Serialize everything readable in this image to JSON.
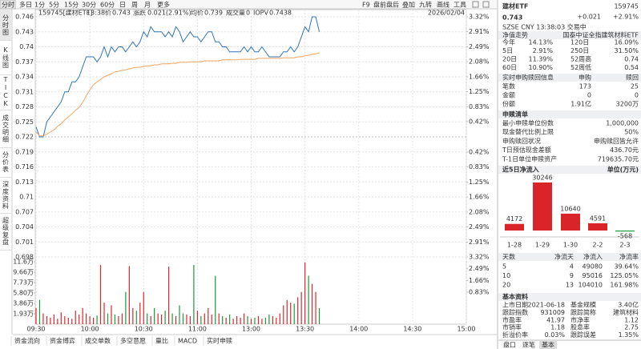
{
  "toolbar": {
    "left": [
      "分时",
      "多日",
      "1分",
      "5分",
      "15分",
      "30分",
      "60分",
      "日",
      "周",
      "月",
      "更多"
    ],
    "right": [
      "F9",
      "盘前盘后",
      "叠加",
      "九转",
      "画线",
      "工具"
    ]
  },
  "side_tabs": [
    "分时图",
    "K线图",
    "TICK",
    "成交明细",
    "分价表",
    "深度资料",
    "超级复盘"
  ],
  "info": {
    "code": "159745[建材ETF]",
    "time": "13:38",
    "price_label": "价",
    "price": "0.743",
    "change_label": "涨跌",
    "change": "0.021(2.91%)",
    "avg_label": "均价",
    "avg": "0.739",
    "volume_label": "成交量",
    "volume": "0",
    "iopv_label": "IOPV",
    "iopv": "0.7438",
    "date": "2026/02/04"
  },
  "bottom_tabs": [
    "资金流向",
    "资金博弈",
    "成交单数",
    "多空意愿",
    "量比",
    "MACD",
    "实时申赎"
  ],
  "chart_data": [
    {
      "type": "line",
      "xlim": [
        0,
        240
      ],
      "xticks": [
        {
          "value": 0,
          "label": "09:30"
        },
        {
          "value": 30,
          "label": "10:00"
        },
        {
          "value": 60,
          "label": "10:30"
        },
        {
          "value": 90,
          "label": "11:00"
        },
        {
          "value": 120,
          "label": "13:00"
        },
        {
          "value": 150,
          "label": "13:30"
        },
        {
          "value": 180,
          "label": "14:00"
        },
        {
          "value": 210,
          "label": "14:30"
        },
        {
          "value": 240,
          "label": "15:00"
        }
      ],
      "ylim": [
        0.698,
        0.746
      ],
      "yticks": [
        0.746,
        0.743,
        0.74,
        0.737,
        0.734,
        0.731,
        0.728,
        0.725,
        0.722,
        0.719,
        0.716,
        0.713,
        0.71,
        0.707,
        0.704,
        0.701,
        0.698
      ],
      "y2lim": [
        -3.32,
        3.32
      ],
      "y2ticks": [
        {
          "value": 3.32,
          "label": "3.32%"
        },
        {
          "value": 2.91,
          "label": "2.91%"
        },
        {
          "value": 2.49,
          "label": "2.49%"
        },
        {
          "value": 2.08,
          "label": "2.08%"
        },
        {
          "value": 1.66,
          "label": "1.66%"
        },
        {
          "value": 1.25,
          "label": "1.25%"
        },
        {
          "value": 0.83,
          "label": "0.83%"
        },
        {
          "value": 0.42,
          "label": "0.42%"
        },
        {
          "value": -0.42,
          "label": "0.42%"
        },
        {
          "value": -0.83,
          "label": "0.83%"
        },
        {
          "value": -1.25,
          "label": "1.25%"
        },
        {
          "value": -1.66,
          "label": "1.66%"
        },
        {
          "value": -2.08,
          "label": "2.08%"
        },
        {
          "value": -2.49,
          "label": "2.49%"
        },
        {
          "value": -2.91,
          "label": "2.91%"
        },
        {
          "value": -3.32,
          "label": "3.32%"
        }
      ],
      "grid": true,
      "x": [
        0,
        2,
        4,
        6,
        8,
        10,
        12,
        14,
        16,
        18,
        20,
        22,
        24,
        26,
        28,
        30,
        32,
        34,
        36,
        38,
        40,
        42,
        44,
        46,
        48,
        50,
        52,
        54,
        56,
        58,
        60,
        62,
        64,
        66,
        68,
        70,
        72,
        74,
        76,
        78,
        80,
        82,
        84,
        86,
        88,
        90,
        92,
        94,
        96,
        98,
        100,
        102,
        104,
        106,
        108,
        110,
        112,
        114,
        116,
        118,
        120,
        122,
        124,
        126,
        128,
        130,
        132,
        134,
        136,
        138,
        140,
        142,
        144,
        146,
        148,
        150,
        152,
        154,
        156,
        158
      ],
      "series": [
        {
          "color": "#2f74b5",
          "values": [
            0.724,
            0.722,
            0.722,
            0.725,
            0.726,
            0.727,
            0.728,
            0.729,
            0.731,
            0.731,
            0.733,
            0.733,
            0.734,
            0.736,
            0.738,
            0.738,
            0.738,
            0.737,
            0.738,
            0.74,
            0.738,
            0.74,
            0.739,
            0.74,
            0.74,
            0.739,
            0.74,
            0.741,
            0.74,
            0.741,
            0.743,
            0.742,
            0.744,
            0.743,
            0.743,
            0.743,
            0.742,
            0.743,
            0.742,
            0.744,
            0.743,
            0.741,
            0.742,
            0.743,
            0.742,
            0.742,
            0.741,
            0.742,
            0.743,
            0.743,
            0.741,
            0.741,
            0.74,
            0.74,
            0.739,
            0.739,
            0.739,
            0.739,
            0.74,
            0.739,
            0.74,
            0.739,
            0.739,
            0.74,
            0.739,
            0.738,
            0.738,
            0.738,
            0.738,
            0.739,
            0.739,
            0.74,
            0.739,
            0.74,
            0.742,
            0.744,
            0.743,
            0.746,
            0.746,
            0.743
          ]
        },
        {
          "color": "#f4a460",
          "values": [
            0.723,
            0.7222,
            0.7222,
            0.7225,
            0.723,
            0.7234,
            0.7241,
            0.7246,
            0.7254,
            0.726,
            0.7266,
            0.7273,
            0.7279,
            0.7289,
            0.7302,
            0.7314,
            0.7324,
            0.733,
            0.7335,
            0.734,
            0.7343,
            0.7346,
            0.735,
            0.7351,
            0.7353,
            0.7354,
            0.7356,
            0.7358,
            0.7359,
            0.7359,
            0.7361,
            0.7362,
            0.7362,
            0.7364,
            0.7364,
            0.7366,
            0.7366,
            0.7366,
            0.7367,
            0.7367,
            0.7369,
            0.7369,
            0.7369,
            0.737,
            0.737,
            0.737,
            0.737,
            0.7372,
            0.7372,
            0.7372,
            0.7372,
            0.7372,
            0.7374,
            0.7374,
            0.7374,
            0.7374,
            0.7374,
            0.7375,
            0.7375,
            0.7375,
            0.7375,
            0.7375,
            0.7377,
            0.7377,
            0.7377,
            0.7377,
            0.7377,
            0.7377,
            0.7377,
            0.7378,
            0.7378,
            0.7378,
            0.7378,
            0.738,
            0.738,
            0.7382,
            0.7383,
            0.7385,
            0.7386,
            0.7388
          ]
        }
      ]
    },
    {
      "type": "bar",
      "ylim": [
        0,
        125000
      ],
      "yticks": [
        {
          "value": 116000,
          "label": "11.6万"
        },
        {
          "value": 96600,
          "label": "9.66万"
        },
        {
          "value": 77300,
          "label": "7.73万"
        },
        {
          "value": 58000,
          "label": "5.80万"
        },
        {
          "value": 38600,
          "label": "3.86万"
        },
        {
          "value": 19300,
          "label": "1.93万"
        }
      ],
      "y2lim": [
        -1.43,
        3.32
      ],
      "y2ticks": [
        {
          "value": 2.49,
          "label": "2.49%"
        },
        {
          "value": 1.66,
          "label": "1.66%"
        },
        {
          "value": 0.83,
          "label": "0.83%"
        }
      ],
      "up_color": "#e0262b",
      "down_color": "#1a9a3a",
      "x": [
        0,
        2,
        4,
        6,
        8,
        10,
        12,
        14,
        16,
        18,
        20,
        22,
        24,
        26,
        28,
        30,
        32,
        34,
        36,
        38,
        40,
        42,
        44,
        46,
        48,
        50,
        52,
        54,
        56,
        58,
        60,
        62,
        64,
        66,
        68,
        70,
        72,
        74,
        76,
        78,
        80,
        82,
        84,
        86,
        88,
        90,
        92,
        94,
        96,
        98,
        100,
        102,
        104,
        106,
        108,
        110,
        112,
        114,
        116,
        118,
        120,
        122,
        124,
        126,
        128,
        130,
        132,
        134,
        136,
        138,
        140,
        142,
        144,
        146,
        148,
        150,
        152,
        154,
        156,
        158
      ],
      "values": [
        30000,
        45000,
        20000,
        15000,
        12000,
        18000,
        10000,
        22000,
        15000,
        12000,
        10000,
        25000,
        18000,
        30000,
        20000,
        15000,
        12000,
        16000,
        110000,
        40000,
        20000,
        35000,
        18000,
        15000,
        20000,
        60000,
        108000,
        30000,
        25000,
        40000,
        60000,
        20000,
        15000,
        30000,
        20000,
        18000,
        25000,
        107000,
        20000,
        15000,
        35000,
        20000,
        18000,
        15000,
        110000,
        25000,
        15000,
        20000,
        30000,
        18000,
        90000,
        20000,
        15000,
        12000,
        18000,
        10000,
        15000,
        12000,
        20000,
        15000,
        10000,
        12000,
        15000,
        10000,
        12000,
        18000,
        15000,
        12000,
        20000,
        35000,
        45000,
        40000,
        38000,
        50000,
        60000,
        115000,
        90000,
        75000,
        60000,
        30000
      ]
    },
    {
      "type": "bar",
      "title": "近5日净流入",
      "unit": "单位(万元)",
      "categories": [
        "1-28",
        "1-29",
        "1-30",
        "2-2",
        "2-3"
      ],
      "values": [
        4172,
        30246,
        10640,
        4591,
        -568
      ],
      "positive_color": "#d9242a",
      "negative_color": "#1a9a3a"
    }
  ],
  "panel": {
    "name": "建材ETF",
    "code": "159745",
    "price": "0.743",
    "change": "+0.021",
    "change_pct": "+2.91%",
    "status": "SZSE  CNY  13:38:03  交易中",
    "nav": {
      "title": "净值走势",
      "fund": "国泰中证全指建筑材料ETF",
      "rows": [
        [
          "今年",
          "14.13%",
          "120日",
          "16.09%"
        ],
        [
          "5日",
          "2.91%",
          "250日",
          "31.50%"
        ],
        [
          "20日",
          "11.39%",
          "52周高",
          "0.74"
        ],
        [
          "60日",
          "10.90%",
          "52周低",
          "0.54"
        ]
      ]
    },
    "realtime": {
      "header": [
        "实时申购赎回信息",
        "申购",
        "赎回"
      ],
      "rows": [
        [
          "笔数",
          "173",
          "25"
        ],
        [
          "金额",
          "0",
          "0"
        ],
        [
          "份额",
          "1.91亿",
          "3200万"
        ]
      ]
    },
    "list": {
      "title": "申赎清单",
      "rows": [
        [
          "最小申赎单位份数",
          "1,000,000"
        ],
        [
          "现金替代比例上限",
          "50%"
        ],
        [
          "申购赎回状况",
          "申购赎回皆允许"
        ],
        [
          "T日预估现金差额",
          "436.70元"
        ],
        [
          "T-1日单位申赎资产",
          "719635.70元"
        ]
      ]
    },
    "stats": {
      "header": [
        "天数",
        "净流天",
        "净流入",
        "净流率"
      ],
      "rows": [
        [
          "5",
          "4",
          "49080",
          "39.64%"
        ],
        [
          "10",
          "9",
          "95016",
          "125.05%"
        ],
        [
          "20",
          "13",
          "104010",
          "161.98%"
        ]
      ]
    },
    "basic": {
      "title": "基本资料",
      "rows": [
        [
          "上市日期",
          "2021-06-18",
          "基金规模",
          "3.40亿"
        ],
        [
          "跟踪指数",
          "931009",
          "跟踪简称",
          "建筑材料"
        ],
        [
          "市盈率",
          "41.97",
          "市净率",
          "1.12"
        ],
        [
          "市销率",
          "1.18",
          "股息率",
          "2.75"
        ],
        [
          "折溢价率",
          "0.03%",
          "跟踪误差",
          "1.35%"
        ]
      ]
    },
    "tabs": [
      "盘口",
      "逐笔",
      "基本"
    ]
  }
}
